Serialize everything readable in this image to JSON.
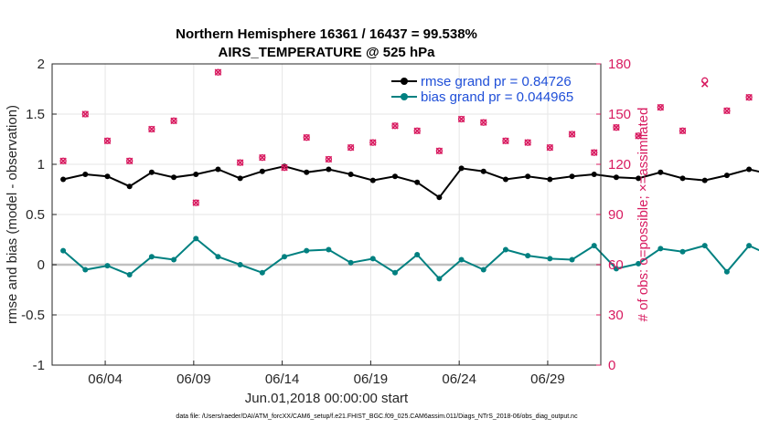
{
  "chart_data": {
    "type": "line",
    "title": "Northern Hemisphere 16361 / 16437 = 99.538%",
    "subtitle": "AIRS_TEMPERATURE @ 525 hPa",
    "xlabel": "Jun.01,2018 00:00:00 start",
    "ylabel": "rmse and bias (model - observation)",
    "ylabel_right": "# of obs: o=possible; ×=assimilated",
    "x_tick_labels": [
      "06/04",
      "06/09",
      "06/14",
      "06/19",
      "06/24",
      "06/29"
    ],
    "x_tick_days": [
      4,
      9,
      14,
      19,
      24,
      29
    ],
    "xlim_days": [
      1,
      1.25,
      32
    ],
    "ylim": [
      -1,
      2
    ],
    "y_ticks": [
      -1,
      -0.5,
      0,
      0.5,
      1,
      1.5,
      2
    ],
    "y_tick_labels": [
      "-1",
      "-0.5",
      "0",
      "0.5",
      "1",
      "1.5",
      "2"
    ],
    "ylim_right": [
      0,
      180
    ],
    "y_ticks_right": [
      0,
      30,
      60,
      90,
      120,
      150,
      180
    ],
    "y_tick_labels_right": [
      "0",
      "30",
      "60",
      "90",
      "120",
      "150",
      "180"
    ],
    "grid": true,
    "legend_position": "top-right",
    "series": [
      {
        "name": "rmse grand pr = 0.84726",
        "axis": "left",
        "color": "#000000",
        "values": [
          0.85,
          0.9,
          0.88,
          0.78,
          0.92,
          0.87,
          0.9,
          0.95,
          0.86,
          0.93,
          0.98,
          0.92,
          0.95,
          0.9,
          0.84,
          0.88,
          0.82,
          0.67,
          0.96,
          0.93,
          0.85,
          0.88,
          0.85,
          0.88,
          0.9,
          0.87,
          0.86,
          0.92,
          0.86,
          0.84,
          0.89,
          0.95,
          0.9,
          0.88,
          0.83,
          0.91,
          0.87,
          0.8,
          0.75,
          0.86,
          0.85,
          0.82,
          0.87,
          0.86,
          0.7,
          0.75,
          0.82,
          0.85,
          0.88,
          0.87,
          0.79,
          0.85,
          0.9,
          0.87,
          0.84,
          0.88,
          0.86,
          0.82,
          0.9,
          0.93,
          0.87,
          0.84,
          0.8,
          0.87,
          0.9,
          0.86,
          0.82,
          0.77,
          0.85,
          0.88,
          0.86,
          0.83,
          0.88,
          0.85,
          0.8,
          0.83,
          0.88,
          0.85,
          0.87,
          0.91,
          0.95,
          0.87,
          0.81,
          0.9,
          0.86,
          0.83,
          0.89,
          0.93,
          0.98,
          0.9,
          0.84,
          0.92,
          0.88,
          0.8,
          0.86,
          0.88,
          0.73,
          0.83,
          0.85,
          0.79,
          0.87,
          0.88,
          0.9,
          0.81,
          0.77,
          0.85,
          0.8,
          0.75,
          0.79,
          0.87,
          0.83,
          0.82,
          0.86,
          0.97,
          0.89,
          0.82,
          0.8,
          0.85,
          0.84,
          0.87,
          0.68,
          0.88,
          0.9,
          0.85,
          0.84,
          0.96,
          0.87,
          0.83,
          0.82,
          0.87,
          0.9,
          0.86,
          0.84,
          0.87,
          0.91,
          0.86,
          0.82,
          0.8,
          0.85,
          0.9,
          0.93,
          0.86,
          0.8,
          0.91,
          0.89,
          0.82,
          0.75,
          0.88,
          0.84,
          0.92,
          0.86,
          0.82,
          0.78,
          0.88,
          0.85,
          0.92,
          0.94,
          0.83,
          0.84,
          0.9,
          0.86,
          0.81,
          0.72,
          0.86,
          0.75,
          0.83,
          0.8,
          0.88,
          0.83,
          0.87,
          0.79,
          0.86,
          0.92,
          0.97,
          0.85,
          0.9,
          0.87,
          0.79,
          0.74,
          0.82,
          0.88,
          0.84,
          0.84,
          0.84
        ]
      },
      {
        "name": "bias grand pr = 0.044965",
        "axis": "left",
        "color": "#008080",
        "values": [
          0.14,
          -0.05,
          -0.01,
          -0.1,
          0.08,
          0.05,
          0.26,
          0.08,
          0.0,
          -0.08,
          0.08,
          0.14,
          0.15,
          0.02,
          0.06,
          -0.08,
          0.1,
          -0.14,
          0.05,
          -0.05,
          0.15,
          0.09,
          0.06,
          0.05,
          0.19,
          -0.04,
          0.01,
          0.16,
          0.13,
          0.19,
          -0.07,
          0.19,
          0.09,
          0.02,
          0.2,
          0.13,
          -0.02,
          0.05,
          -0.08,
          0.02,
          0.08,
          0.01,
          0.0,
          0.14,
          -0.03,
          -0.05,
          0.13,
          0.03,
          -0.03,
          0.06,
          0.21,
          -0.09,
          0.14,
          0.09,
          0.0,
          0.03,
          -0.02,
          0.07,
          0.09,
          0.19,
          0.11,
          0.07,
          0.27,
          0.13,
          -0.01,
          0.08,
          -0.04,
          0.08,
          0.21,
          0.05,
          -0.06,
          0.09,
          0.15,
          -0.02,
          0.18,
          0.1,
          0.01,
          -0.09,
          0.05,
          0.0,
          -0.21,
          0.14,
          0.06,
          0.08,
          0.17,
          0.0,
          0.2,
          0.09,
          -0.08,
          0.19,
          0.09,
          0.02,
          0.1,
          0.02,
          0.03,
          0.06,
          0.06,
          0.17,
          -0.06,
          0.13,
          0.19,
          0.12,
          -0.02,
          0.07,
          0.15,
          0.09,
          0.0,
          0.15,
          0.16,
          0.12,
          0.04,
          -0.01,
          0.21,
          0.07,
          0.24,
          0.16,
          0.08,
          -0.01,
          0.09,
          0.12,
          0.02,
          0.04,
          0.06,
          -0.08,
          0.16,
          0.2,
          0.03,
          -0.06,
          -0.02,
          0.01,
          0.07,
          -0.06,
          0.08,
          -0.05,
          0.16,
          0.14,
          0.03,
          0.08,
          0.05,
          0.0,
          0.13,
          0.11,
          -0.03,
          0.09,
          0.18,
          0.07,
          -0.06,
          0.08,
          0.11,
          0.0,
          0.03,
          0.11,
          0.16,
          0.09,
          -0.04,
          0.06,
          0.1,
          0.09,
          0.08,
          -0.09,
          0.09,
          0.1,
          0.11,
          0.01,
          0.08,
          -0.03,
          0.15,
          0.05,
          0.06,
          0.09,
          0.14,
          -0.1,
          0.07,
          -0.09,
          0.18,
          -0.02,
          -0.11,
          0.11,
          -0.01,
          0.03,
          0.09,
          0.0,
          0.08,
          0.08
        ]
      },
      {
        "name": "obs possible",
        "axis": "right",
        "color": "#d81b60",
        "marker": "circle",
        "values": [
          122,
          150,
          134,
          122,
          141,
          146,
          97,
          175,
          121,
          124,
          118,
          136,
          123,
          130,
          133,
          143,
          140,
          128,
          147,
          145,
          134,
          133,
          130,
          138,
          127,
          142,
          137,
          154,
          140,
          170,
          152,
          160,
          135,
          155,
          136,
          145,
          141,
          131,
          136,
          130,
          130,
          138,
          116,
          150,
          130,
          131,
          121,
          133,
          131,
          133,
          140,
          126,
          133,
          133,
          134,
          140,
          136,
          127,
          154,
          128,
          130,
          122,
          137,
          125,
          119,
          151,
          123,
          152,
          154,
          161,
          132,
          147,
          128,
          155,
          166,
          133,
          121,
          150,
          131,
          133,
          125,
          120,
          118,
          151,
          166,
          151,
          140,
          121,
          134,
          152,
          150,
          142,
          138,
          122,
          152,
          133,
          143,
          128,
          157,
          122,
          158,
          145,
          121,
          131,
          121,
          143,
          138,
          159,
          127,
          130,
          127,
          139,
          128,
          166,
          152,
          126,
          135,
          131,
          124,
          162,
          129,
          158,
          128,
          122,
          136,
          143,
          120,
          151,
          160,
          147,
          120,
          141,
          144,
          124,
          138,
          125,
          125,
          154,
          123,
          155,
          132,
          152,
          155,
          115,
          131,
          134,
          155,
          143,
          137,
          130,
          134,
          145,
          129,
          166,
          138,
          180,
          163,
          136,
          140,
          138,
          158,
          132,
          120,
          133,
          131,
          146,
          136,
          121,
          130,
          141,
          157,
          136,
          122,
          160,
          141,
          149,
          155,
          172,
          140,
          124,
          128,
          179,
          168,
          120,
          137,
          143
        ]
      },
      {
        "name": "obs assimilated",
        "axis": "right",
        "color": "#d81b60",
        "marker": "x",
        "values": [
          122,
          150,
          134,
          122,
          141,
          146,
          97,
          175,
          121,
          124,
          118,
          136,
          123,
          130,
          133,
          143,
          140,
          128,
          147,
          145,
          134,
          133,
          130,
          138,
          127,
          142,
          137,
          154,
          140,
          168,
          152,
          160,
          135,
          155,
          136,
          145,
          141,
          131,
          136,
          130,
          130,
          138,
          116,
          150,
          130,
          131,
          121,
          133,
          131,
          133,
          140,
          126,
          133,
          133,
          134,
          140,
          136,
          127,
          154,
          128,
          130,
          122,
          137,
          125,
          119,
          151,
          123,
          152,
          154,
          161,
          132,
          147,
          128,
          155,
          166,
          133,
          121,
          150,
          131,
          133,
          125,
          120,
          118,
          151,
          166,
          151,
          140,
          121,
          134,
          152,
          150,
          142,
          138,
          122,
          152,
          133,
          143,
          128,
          157,
          122,
          158,
          145,
          121,
          131,
          121,
          143,
          138,
          159,
          127,
          130,
          127,
          139,
          128,
          166,
          152,
          126,
          135,
          131,
          124,
          162,
          129,
          158,
          128,
          122,
          136,
          143,
          120,
          151,
          160,
          147,
          120,
          141,
          144,
          124,
          138,
          125,
          125,
          154,
          123,
          155,
          132,
          152,
          155,
          115,
          131,
          134,
          155,
          143,
          137,
          130,
          134,
          145,
          129,
          166,
          138,
          180,
          163,
          136,
          140,
          138,
          158,
          132,
          120,
          133,
          131,
          146,
          136,
          121,
          130,
          141,
          157,
          136,
          122,
          160,
          141,
          149,
          155,
          172,
          140,
          124,
          128,
          179,
          168,
          120,
          137,
          0
        ]
      }
    ],
    "zero_line": {
      "y": 0,
      "color": "#c0c0c0"
    }
  },
  "footer_text": "data file: /Users/raeder/DAI/ATM_forcXX/CAM6_setup/f.e21.FHIST_BGC.f09_025.CAM6assim.011/Diags_NTrS_2018-06/obs_diag_output.nc"
}
